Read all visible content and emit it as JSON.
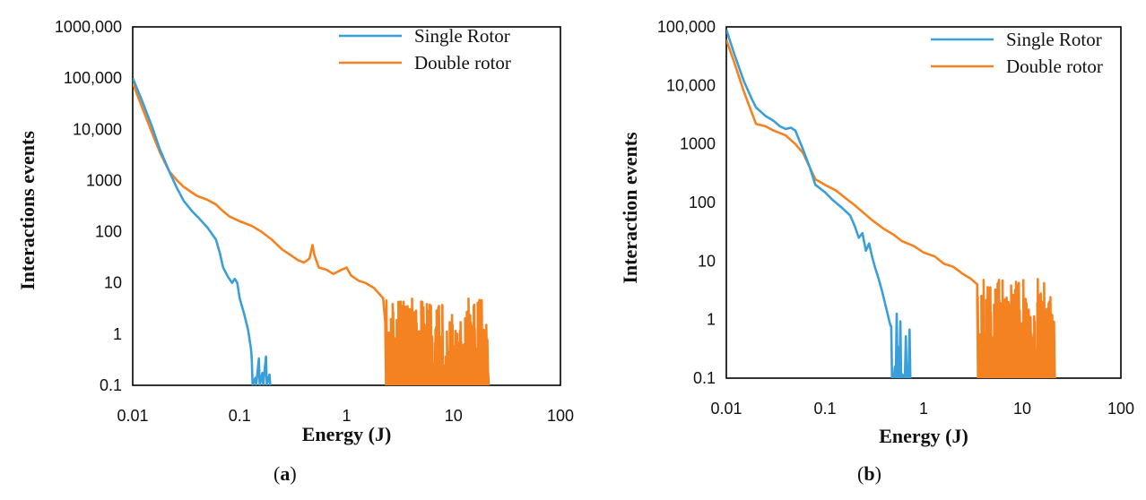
{
  "chart_data": [
    {
      "type": "line",
      "panel_label": "a",
      "caption_open": "(",
      "caption_close": ")",
      "xlabel": "Energy (J)",
      "ylabel": "Interactions events",
      "xscale": "log",
      "yscale": "log",
      "xlim": [
        0.01,
        100
      ],
      "ylim": [
        0.1,
        1000000
      ],
      "x_ticks": [
        0.01,
        0.1,
        1,
        10,
        100
      ],
      "x_tick_labels": [
        "0.01",
        "0.1",
        "1",
        "10",
        "100"
      ],
      "y_ticks": [
        0.1,
        1,
        10,
        100,
        1000,
        10000,
        100000,
        1000000
      ],
      "y_tick_labels": [
        "0.1",
        "1",
        "10",
        "100",
        "1000",
        "10,000",
        "100,000",
        "1000,000"
      ],
      "legend_position": "top-right",
      "series": [
        {
          "name": "Single Rotor",
          "color": "#3a9fd8",
          "points": [
            [
              0.01,
              100000
            ],
            [
              0.012,
              40000
            ],
            [
              0.015,
              12000
            ],
            [
              0.018,
              4000
            ],
            [
              0.022,
              1500
            ],
            [
              0.026,
              700
            ],
            [
              0.03,
              400
            ],
            [
              0.036,
              250
            ],
            [
              0.042,
              180
            ],
            [
              0.05,
              120
            ],
            [
              0.06,
              70
            ],
            [
              0.065,
              40
            ],
            [
              0.07,
              20
            ],
            [
              0.078,
              13
            ],
            [
              0.085,
              10
            ],
            [
              0.09,
              12
            ],
            [
              0.095,
              10
            ],
            [
              0.1,
              5
            ],
            [
              0.11,
              2.5
            ],
            [
              0.12,
              1.2
            ],
            [
              0.128,
              0.5
            ]
          ],
          "noise": {
            "from": 0.13,
            "to": 0.19,
            "spikes": 5,
            "min": 0.1,
            "max": 0.5
          }
        },
        {
          "name": "Double rotor",
          "color": "#f58220",
          "points": [
            [
              0.01,
              80000
            ],
            [
              0.012,
              30000
            ],
            [
              0.015,
              9000
            ],
            [
              0.018,
              3500
            ],
            [
              0.022,
              1500
            ],
            [
              0.026,
              1000
            ],
            [
              0.03,
              750
            ],
            [
              0.035,
              600
            ],
            [
              0.04,
              500
            ],
            [
              0.05,
              420
            ],
            [
              0.06,
              340
            ],
            [
              0.07,
              250
            ],
            [
              0.08,
              200
            ],
            [
              0.1,
              160
            ],
            [
              0.13,
              130
            ],
            [
              0.16,
              100
            ],
            [
              0.2,
              70
            ],
            [
              0.25,
              45
            ],
            [
              0.3,
              35
            ],
            [
              0.35,
              28
            ],
            [
              0.4,
              25
            ],
            [
              0.45,
              30
            ],
            [
              0.48,
              55
            ],
            [
              0.5,
              35
            ],
            [
              0.55,
              20
            ],
            [
              0.65,
              18
            ],
            [
              0.75,
              15
            ],
            [
              0.9,
              18
            ],
            [
              1.0,
              20
            ],
            [
              1.1,
              14
            ],
            [
              1.3,
              11
            ],
            [
              1.5,
              10
            ],
            [
              1.8,
              8
            ],
            [
              2.2,
              5
            ]
          ],
          "noise": {
            "from": 2.3,
            "to": 21,
            "spikes": 180,
            "min": 0.1,
            "max": 5
          }
        }
      ]
    },
    {
      "type": "line",
      "panel_label": "b",
      "caption_open": "(",
      "caption_close": ")",
      "xlabel": "Energy (J)",
      "ylabel": "Interaction events",
      "xscale": "log",
      "yscale": "log",
      "xlim": [
        0.01,
        100
      ],
      "ylim": [
        0.1,
        100000
      ],
      "x_ticks": [
        0.01,
        0.1,
        1,
        10,
        100
      ],
      "x_tick_labels": [
        "0.01",
        "0.1",
        "1",
        "10",
        "100"
      ],
      "y_ticks": [
        0.1,
        1,
        10,
        100,
        1000,
        10000,
        100000
      ],
      "y_tick_labels": [
        "0.1",
        "1",
        "10",
        "100",
        "1000",
        "10,000",
        "100,000"
      ],
      "legend_position": "top-right",
      "series": [
        {
          "name": "Single Rotor",
          "color": "#3a9fd8",
          "points": [
            [
              0.01,
              90000
            ],
            [
              0.012,
              35000
            ],
            [
              0.015,
              12000
            ],
            [
              0.018,
              6000
            ],
            [
              0.02,
              4200
            ],
            [
              0.025,
              3000
            ],
            [
              0.03,
              2500
            ],
            [
              0.035,
              2000
            ],
            [
              0.04,
              1800
            ],
            [
              0.045,
              1900
            ],
            [
              0.05,
              1700
            ],
            [
              0.06,
              800
            ],
            [
              0.07,
              400
            ],
            [
              0.08,
              200
            ],
            [
              0.1,
              150
            ],
            [
              0.12,
              110
            ],
            [
              0.15,
              80
            ],
            [
              0.18,
              60
            ],
            [
              0.2,
              40
            ],
            [
              0.22,
              25
            ],
            [
              0.24,
              30
            ],
            [
              0.26,
              15
            ],
            [
              0.28,
              20
            ],
            [
              0.3,
              12
            ],
            [
              0.32,
              8
            ],
            [
              0.35,
              5
            ],
            [
              0.38,
              3
            ],
            [
              0.42,
              1.5
            ],
            [
              0.46,
              0.8
            ]
          ],
          "noise": {
            "from": 0.47,
            "to": 0.72,
            "spikes": 10,
            "min": 0.1,
            "max": 1.5
          }
        },
        {
          "name": "Double rotor",
          "color": "#f58220",
          "points": [
            [
              0.01,
              60000
            ],
            [
              0.012,
              25000
            ],
            [
              0.015,
              8000
            ],
            [
              0.018,
              3500
            ],
            [
              0.02,
              2200
            ],
            [
              0.025,
              2000
            ],
            [
              0.03,
              1700
            ],
            [
              0.04,
              1400
            ],
            [
              0.05,
              1000
            ],
            [
              0.06,
              700
            ],
            [
              0.07,
              400
            ],
            [
              0.08,
              250
            ],
            [
              0.1,
              200
            ],
            [
              0.13,
              160
            ],
            [
              0.16,
              120
            ],
            [
              0.2,
              90
            ],
            [
              0.25,
              65
            ],
            [
              0.3,
              50
            ],
            [
              0.4,
              35
            ],
            [
              0.5,
              28
            ],
            [
              0.6,
              22
            ],
            [
              0.8,
              18
            ],
            [
              1.0,
              14
            ],
            [
              1.3,
              12
            ],
            [
              1.6,
              9
            ],
            [
              2.0,
              8
            ],
            [
              2.5,
              6
            ],
            [
              3.0,
              5
            ],
            [
              3.5,
              4
            ]
          ],
          "noise": {
            "from": 3.5,
            "to": 21,
            "spikes": 170,
            "min": 0.1,
            "max": 5
          }
        }
      ]
    }
  ]
}
